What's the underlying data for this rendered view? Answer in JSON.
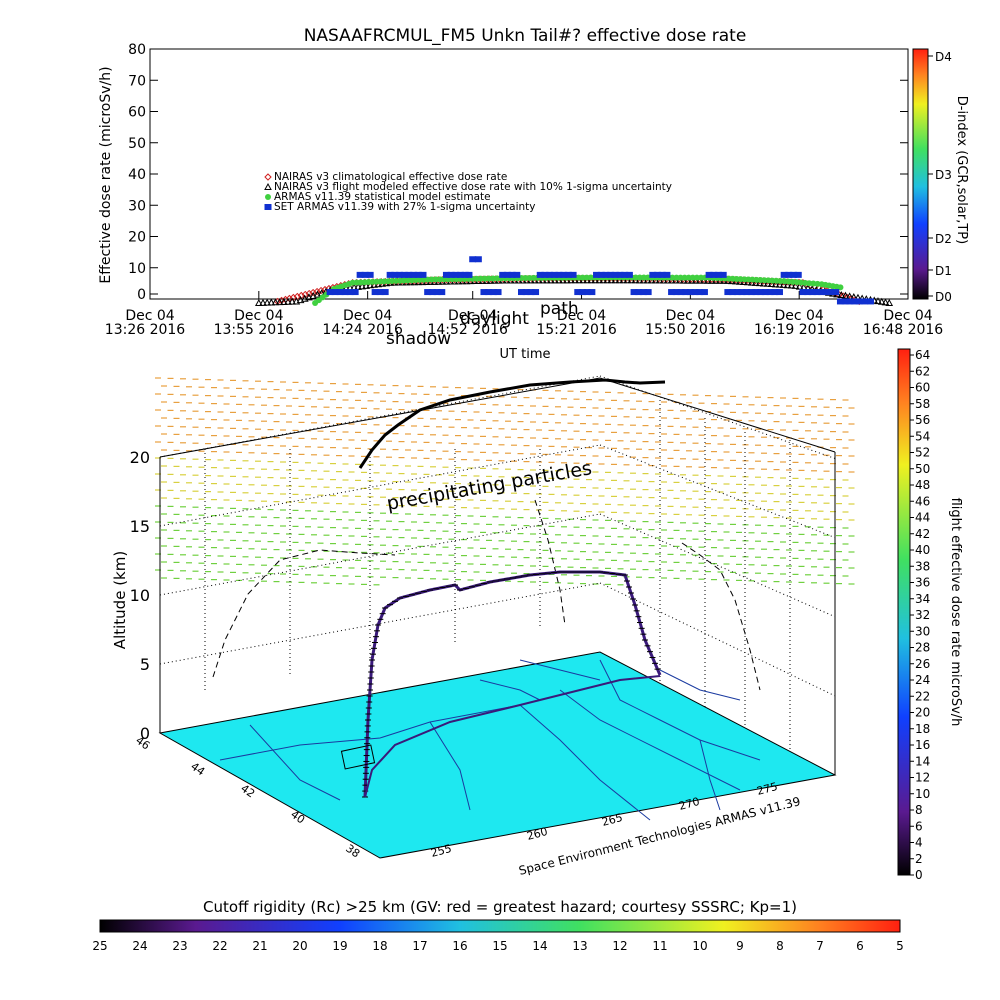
{
  "chart_data": [
    {
      "type": "scatter",
      "title": "NASAAFRCMUL_FM5 Unkn Tail#? effective dose rate",
      "ylabel": "Effective dose rate (microSv/h)",
      "xlabel": "UT time",
      "ylim": [
        0,
        80
      ],
      "yticks": [
        0,
        10,
        20,
        30,
        40,
        50,
        60,
        70,
        80
      ],
      "xlim": [
        "2016-12-04 13:26",
        "2016-12-04 16:48"
      ],
      "xticks": [
        {
          "t": "2016-12-04 13:26",
          "top": "Dec 04",
          "bottom": "13:26 2016"
        },
        {
          "t": "2016-12-04 13:55",
          "top": "Dec 04",
          "bottom": "13:55 2016"
        },
        {
          "t": "2016-12-04 14:24",
          "top": "Dec 04",
          "bottom": "14:24 2016"
        },
        {
          "t": "2016-12-04 14:52",
          "top": "Dec 04",
          "bottom": "14:52 2016"
        },
        {
          "t": "2016-12-04 15:21",
          "top": "Dec 04",
          "bottom": "15:21 2016"
        },
        {
          "t": "2016-12-04 15:50",
          "top": "Dec 04",
          "bottom": "15:50 2016"
        },
        {
          "t": "2016-12-04 16:19",
          "top": "Dec 04",
          "bottom": "16:19 2016"
        },
        {
          "t": "2016-12-04 16:48",
          "top": "Dec 04",
          "bottom": "16:48 2016"
        }
      ],
      "annotations": [
        "daylight",
        "path",
        "shadow"
      ],
      "series": [
        {
          "name": "NAIRAS v3 climatological effective dose rate",
          "marker": "diamond",
          "color": "#d02020",
          "x": [
            "2016-12-04 14:00",
            "2016-12-04 14:20",
            "2016-12-04 14:45",
            "2016-12-04 15:10",
            "2016-12-04 15:35",
            "2016-12-04 16:00",
            "2016-12-04 16:20",
            "2016-12-04 16:35"
          ],
          "y": [
            0.5,
            6.5,
            7.5,
            7.8,
            7.8,
            7.6,
            6.5,
            0.5
          ]
        },
        {
          "name": "NAIRAS v3 flight modeled effective dose rate with 10% 1-sigma uncertainty",
          "marker": "triangle",
          "color": "#000000",
          "x": [
            "2016-12-04 13:55",
            "2016-12-04 14:05",
            "2016-12-04 14:14",
            "2016-12-04 14:30",
            "2016-12-04 15:00",
            "2016-12-04 15:30",
            "2016-12-04 16:00",
            "2016-12-04 16:18",
            "2016-12-04 16:28",
            "2016-12-04 16:38",
            "2016-12-04 16:43"
          ],
          "y": [
            0.0,
            0.5,
            4.0,
            6.5,
            7.2,
            7.3,
            7.1,
            5.5,
            3.0,
            1.0,
            0.0
          ]
        },
        {
          "name": "ARMAS v11.39 statistical model estimate",
          "marker": "star",
          "color": "#40d040",
          "x": [
            "2016-12-04 14:10",
            "2016-12-04 14:15",
            "2016-12-04 14:20",
            "2016-12-04 14:40",
            "2016-12-04 15:05",
            "2016-12-04 15:30",
            "2016-12-04 15:55",
            "2016-12-04 16:15",
            "2016-12-04 16:25",
            "2016-12-04 16:30"
          ],
          "y": [
            0.0,
            4.5,
            6.5,
            7.5,
            8.0,
            8.2,
            8.1,
            7.0,
            6.0,
            5.0
          ]
        },
        {
          "name": "SET ARMAS v11.39 with 27% 1-sigma uncertainty",
          "marker": "square",
          "color": "#1030d0",
          "x": [
            "2016-12-04 14:14",
            "2016-12-04 14:18",
            "2016-12-04 14:22",
            "2016-12-04 14:26",
            "2016-12-04 14:30",
            "2016-12-04 14:35",
            "2016-12-04 14:40",
            "2016-12-04 14:45",
            "2016-12-04 14:50",
            "2016-12-04 14:52",
            "2016-12-04 14:55",
            "2016-12-04 15:00",
            "2016-12-04 15:05",
            "2016-12-04 15:10",
            "2016-12-04 15:15",
            "2016-12-04 15:20",
            "2016-12-04 15:25",
            "2016-12-04 15:30",
            "2016-12-04 15:35",
            "2016-12-04 15:40",
            "2016-12-04 15:45",
            "2016-12-04 15:50",
            "2016-12-04 15:55",
            "2016-12-04 16:00",
            "2016-12-04 16:05",
            "2016-12-04 16:10",
            "2016-12-04 16:15",
            "2016-12-04 16:20",
            "2016-12-04 16:25",
            "2016-12-04 16:30",
            "2016-12-04 16:35",
            "2016-12-04 16:38"
          ],
          "y": [
            3.5,
            3.5,
            9.0,
            3.5,
            9.0,
            9.0,
            3.5,
            9.0,
            9.0,
            14.0,
            3.5,
            9.0,
            3.5,
            9.0,
            9.0,
            3.5,
            9.0,
            9.0,
            3.5,
            9.0,
            3.5,
            3.5,
            9.0,
            3.5,
            3.5,
            3.5,
            9.0,
            3.5,
            3.5,
            0.5,
            0.5,
            0.5
          ]
        }
      ]
    },
    {
      "type": "scatter",
      "subtype": "3d-flight-track",
      "ylabel": "Altitude (km)",
      "zticks": [
        0,
        5,
        10,
        15,
        20
      ],
      "latitude_ticks": [
        "46",
        "44",
        "42",
        "40",
        "38"
      ],
      "longitude_ticks": [
        "255",
        "260",
        "265",
        "270",
        "275"
      ],
      "annotation": "precipitating particles",
      "credit": "Space Environment Technologies ARMAS v11.39",
      "flight_path": {
        "lon": [
          254.0,
          255.5,
          256.5,
          258.5,
          261.0,
          263.5,
          266.0,
          268.0,
          270.0,
          272.0,
          274.0
        ],
        "lat": [
          38.8,
          39.5,
          41.0,
          42.0,
          42.6,
          43.1,
          43.4,
          43.6,
          43.8,
          44.0,
          44.1
        ],
        "alt_km": [
          0,
          5,
          10,
          11.5,
          12.0,
          12.2,
          12.4,
          12.5,
          12.6,
          12.3,
          0
        ]
      }
    }
  ],
  "colorbar_dose": {
    "label": "flight effective dose rate microSv/h",
    "ticks": [
      "0",
      "2",
      "4",
      "6",
      "8",
      "10",
      "12",
      "14",
      "16",
      "18",
      "20",
      "22",
      "24",
      "26",
      "28",
      "30",
      "32",
      "34",
      "36",
      "38",
      "40",
      "42",
      "44",
      "46",
      "48",
      "50",
      "52",
      "54",
      "56",
      "58",
      "60",
      "62",
      "64"
    ]
  },
  "colorbar_dindex": {
    "label": "D-index (GCR,solar,TP)",
    "ticks": [
      "D0",
      "D1",
      "D2",
      "D3",
      "D4"
    ]
  },
  "colorbar_rigidity": {
    "label": "Cutoff rigidity (Rc) >25 km (GV: red = greatest hazard; courtesy SSSRC; Kp=1)",
    "ticks": [
      "25",
      "24",
      "23",
      "22",
      "21",
      "20",
      "19",
      "18",
      "17",
      "16",
      "15",
      "14",
      "13",
      "12",
      "11",
      "10",
      "9",
      "8",
      "7",
      "6",
      "5"
    ]
  },
  "colors": {
    "map_cyan": "#1ee8f0",
    "track_purple": "#3a1a7a",
    "marker_red": "#d02020",
    "marker_green": "#40d040",
    "marker_blue": "#1030d0"
  }
}
